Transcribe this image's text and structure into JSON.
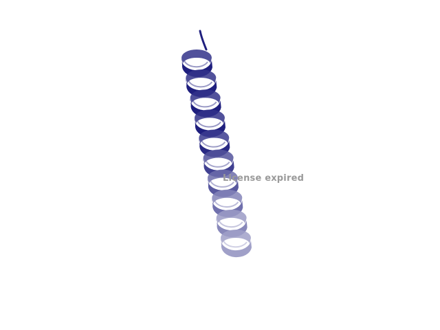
{
  "viewer": {
    "background_color": "#ffffff",
    "watermark_text": "License expired",
    "watermark_color": "#9a9a9a"
  },
  "structure": {
    "type": "alpha-helix",
    "representation": "cartoon-ribbon",
    "turns_visible": 10,
    "color_start": "#1f1f7e",
    "color_end": "#a0a0c8"
  }
}
